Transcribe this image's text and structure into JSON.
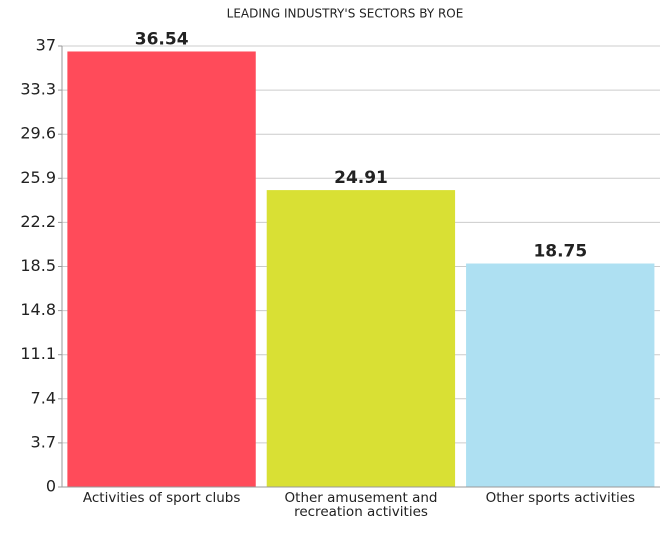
{
  "chart_data": {
    "type": "bar",
    "title": "LEADING INDUSTRY'S SECTORS BY ROE",
    "categories": [
      "Activities of sport clubs",
      "Other amusement and recreation activities",
      "Other sports activities"
    ],
    "values": [
      36.54,
      24.91,
      18.75
    ],
    "colors": [
      "#ff4b5a",
      "#d9e034",
      "#aee0f2"
    ],
    "ylim": [
      0,
      37
    ],
    "yticks": [
      0,
      3.7,
      7.4,
      11.1,
      14.8,
      18.5,
      22.2,
      25.9,
      29.6,
      33.3,
      37
    ],
    "grid": true
  }
}
